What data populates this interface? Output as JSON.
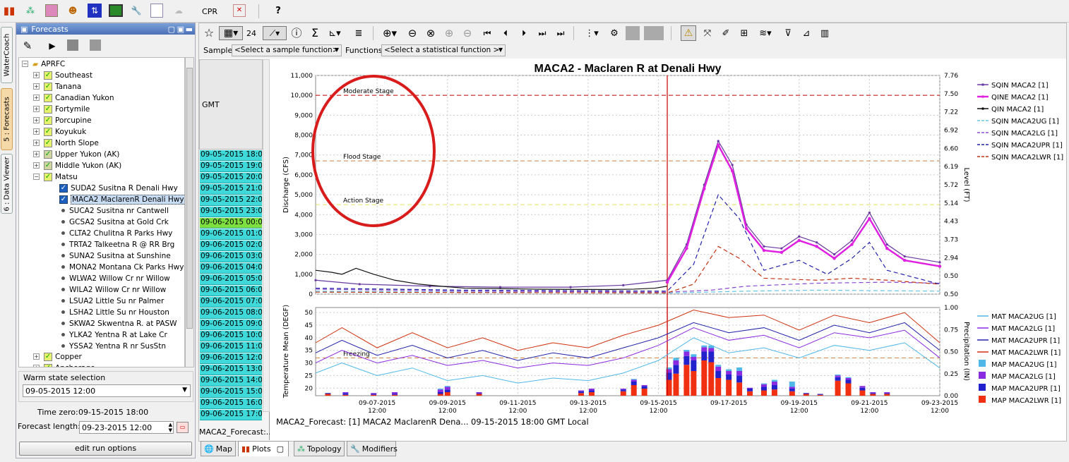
{
  "top_toolbar": {
    "cpr_label": "CPR",
    "help_label": "?"
  },
  "side_tabs": [
    "WaterCoach",
    "5 : Forecasts",
    "6 : Data Viewer"
  ],
  "forecasts_panel": {
    "title": "Forecasts",
    "tree": {
      "root": "APRFC",
      "groups": [
        "Southeast",
        "Tanana",
        "Canadian Yukon",
        "Fortymile",
        "Porcupine",
        "Koyukuk",
        "North Slope",
        "Upper Yukon (AK)",
        "Middle Yukon (AK)",
        "Matsu"
      ],
      "matsu_children": [
        "SUDA2 Susitna R Denali Hwy",
        "MACA2 MaclarenR Denali Hwy",
        "SUCA2 Susitna nr Cantwell",
        "GCSA2 Susitna at Gold Crk",
        "CLTA2 Chulitna R Parks Hwy",
        "TRTA2 Talkeetna R @ RR Brg",
        "SUNA2 Susitna at Sunshine",
        "MONA2 Montana Ck Parks Hwy",
        "WLWA2 Willow Cr nr Willow",
        "WILA2 Willow Cr nr Willow",
        "LSUA2 Little Su nr Palmer",
        "LSHA2 Little Su nr Houston",
        "SKWA2 Skwentna R. at PASW",
        "YLKA2 Yentna R at Lake Cr",
        "YSSA2 Yentna R nr SusStn"
      ],
      "after_groups": [
        "Copper",
        "Anchorage",
        "Kenai",
        "Southwest"
      ]
    },
    "warm_state_label": "Warm state selection",
    "warm_state_value": "09-05-2015 12:00",
    "time_zero_label": "Time zero:",
    "time_zero_value": "09-15-2015 18:00",
    "forecast_length_label": "Forecast length:",
    "forecast_length_value": "09-23-2015 12:00",
    "edit_run_label": "edit run options"
  },
  "table_panel": {
    "header": "GMT",
    "rows": [
      "09-05-2015 18:00",
      "09-05-2015 19:00",
      "09-05-2015 20:00",
      "09-05-2015 21:00",
      "09-05-2015 22:00",
      "09-05-2015 23:00",
      "09-06-2015 00:00",
      "09-06-2015 01:00",
      "09-06-2015 02:00",
      "09-06-2015 03:00",
      "09-06-2015 04:00",
      "09-06-2015 05:00",
      "09-06-2015 06:00",
      "09-06-2015 07:00",
      "09-06-2015 08:00",
      "09-06-2015 09:00",
      "09-06-2015 10:00",
      "09-06-2015 11:00",
      "09-06-2015 12:00",
      "09-06-2015 13:00",
      "09-06-2015 14:00",
      "09-06-2015 15:00",
      "09-06-2015 16:00",
      "09-06-2015 17:00"
    ],
    "footer": "MACA2_Forecast:..."
  },
  "plot_toolbar": {
    "number_label": "24",
    "sample_label": "Sample",
    "sample_select": "<Select a sample function>",
    "functions_label": "Functions",
    "functions_select": "<Select a statistical function >"
  },
  "bottom_tabs": [
    "Map",
    "Plots",
    "Topology",
    "Modifiers"
  ],
  "status_text": "MACA2_Forecast: [1] MACA2 MaclarenR Dena... 09-15-2015 18:00 GMT Local",
  "colors": {
    "cyan": "#3fd9d9",
    "magenta": "#e020e0",
    "red_annotation": "#d81b1b",
    "lwr": "#f03010",
    "upr": "#2222cc",
    "lg": "#8a2be2",
    "ug": "#4fb8e8"
  },
  "chart_data": [
    {
      "type": "line",
      "title": "MACA2 - Maclaren R at Denali Hwy",
      "ylabel": "Discharge (CFS)",
      "y2label": "Level (FT)",
      "ylim": [
        0,
        11000
      ],
      "yticks": [
        "11,000",
        "10,000",
        "9,000",
        "8,000",
        "7,000",
        "6,000",
        "5,000",
        "4,000",
        "3,000",
        "2,000",
        "1,000",
        "0"
      ],
      "y2ticks": [
        "7.76",
        "7.50",
        "7.22",
        "6.92",
        "6.60",
        "6.19",
        "5.72",
        "5.14",
        "4.43",
        "3.73",
        "2.94",
        "0.50",
        "0.50"
      ],
      "annotations": [
        "Moderate Stage",
        "Flood Stage",
        "Action Stage"
      ],
      "thresholds": {
        "Moderate Stage": 10000,
        "Flood Stage": 6700,
        "Action Stage": 4500
      },
      "x_start_day": 5.75,
      "x_end_day": 23.5,
      "forecast_start_day": 15.75,
      "xticks": [
        {
          "day": 7.5,
          "date": "09-07-2015",
          "time": "12:00"
        },
        {
          "day": 9.5,
          "date": "09-09-2015",
          "time": "12:00"
        },
        {
          "day": 11.5,
          "date": "09-11-2015",
          "time": "12:00"
        },
        {
          "day": 13.5,
          "date": "09-13-2015",
          "time": "12:00"
        },
        {
          "day": 15.5,
          "date": "09-15-2015",
          "time": "12:00"
        },
        {
          "day": 17.5,
          "date": "09-17-2015",
          "time": ""
        },
        {
          "day": 19.5,
          "date": "09-19-2015",
          "time": "12:00"
        },
        {
          "day": 21.5,
          "date": "09-21-2015",
          "time": "12:00"
        },
        {
          "day": 23.5,
          "date": "09-23-2015",
          "time": "12:00"
        }
      ],
      "series": [
        {
          "name": "SQIN MACA2 [1]",
          "color": "#6a3aa0",
          "dash": "",
          "x": [
            5.75,
            7,
            9,
            11,
            13,
            14.5,
            15.75,
            16.3,
            16.8,
            17.2,
            17.6,
            18,
            18.5,
            19,
            19.5,
            20,
            20.5,
            21,
            21.5,
            22,
            22.5,
            23.5
          ],
          "y": [
            700,
            500,
            400,
            350,
            350,
            450,
            700,
            2500,
            5500,
            7700,
            6500,
            3500,
            2400,
            2300,
            2900,
            2600,
            2000,
            2700,
            4100,
            2500,
            1900,
            1600
          ]
        },
        {
          "name": "QINE MACA2 [1]",
          "color": "#e020e0",
          "dash": "",
          "x": [
            15.75,
            16.3,
            16.8,
            17.2,
            17.6,
            18,
            18.5,
            19,
            19.5,
            20,
            20.5,
            21,
            21.5,
            22,
            22.5,
            23.5
          ],
          "y": [
            600,
            2300,
            5300,
            7500,
            6200,
            3300,
            2200,
            2100,
            2700,
            2400,
            1800,
            2500,
            3800,
            2300,
            1700,
            1400
          ]
        },
        {
          "name": "QIN MACA2 [1]",
          "color": "#111111",
          "dash": "",
          "x": [
            5.75,
            6.2,
            6.5,
            6.9,
            7.4,
            8,
            8.7,
            9.3,
            10,
            11,
            12,
            13,
            14,
            14.8,
            15.4,
            15.75
          ],
          "y": [
            1200,
            1100,
            1000,
            1300,
            1000,
            700,
            500,
            400,
            300,
            280,
            250,
            240,
            230,
            250,
            300,
            400
          ]
        },
        {
          "name": "SQIN MACA2UG [1]",
          "color": "#66c6e8",
          "dash": "6,4",
          "x": [
            5.75,
            10,
            15.75,
            18,
            20,
            23.5
          ],
          "y": [
            150,
            100,
            50,
            150,
            200,
            150
          ]
        },
        {
          "name": "SQIN MACA2LG [1]",
          "color": "#8a4ad0",
          "dash": "6,4",
          "x": [
            5.75,
            10,
            15.75,
            17,
            18,
            20,
            22,
            23.5
          ],
          "y": [
            250,
            150,
            100,
            200,
            400,
            550,
            600,
            550
          ]
        },
        {
          "name": "SQIN MACA2UPR [1]",
          "color": "#2222aa",
          "dash": "6,4",
          "x": [
            5.75,
            10,
            15.75,
            16.5,
            17.2,
            17.8,
            18.5,
            19.5,
            20.3,
            21,
            21.5,
            22,
            23.5
          ],
          "y": [
            300,
            200,
            150,
            1500,
            5000,
            3800,
            1200,
            1700,
            1000,
            1800,
            2600,
            1200,
            500
          ]
        },
        {
          "name": "SQIN MACA2LWR [1]",
          "color": "#c03010",
          "dash": "6,4",
          "x": [
            5.75,
            10,
            15.75,
            16.5,
            17.2,
            17.8,
            18.5,
            20,
            21,
            22,
            23.5
          ],
          "y": [
            100,
            80,
            60,
            500,
            2400,
            1800,
            800,
            700,
            800,
            700,
            500
          ]
        }
      ]
    },
    {
      "type": "line",
      "ylabel": "Temperature Mean (DEGF)",
      "y2label": "Precipitation (IN)",
      "ylim": [
        17,
        52
      ],
      "yticks": [
        "50",
        "45",
        "40",
        "35",
        "30",
        "25",
        "20"
      ],
      "y2ticks": [
        "1.00",
        "0.75",
        "0.50",
        "0.25",
        "0.00"
      ],
      "annotations": [
        "Freezing"
      ],
      "freezing": 32,
      "series": [
        {
          "name": "MAT MACA2UG [1]",
          "color": "#4fb8e8",
          "x": [
            5.75,
            6.5,
            7.5,
            8.5,
            9.5,
            10.5,
            11.5,
            12.5,
            13.5,
            14.5,
            15.5,
            16.5,
            17.5,
            18.5,
            19.5,
            20.5,
            21.5,
            22.5,
            23.5
          ],
          "y": [
            26,
            30,
            25,
            28,
            23,
            25,
            22,
            24,
            23,
            26,
            31,
            40,
            34,
            36,
            32,
            37,
            35,
            38,
            28
          ]
        },
        {
          "name": "MAT MACA2LG [1]",
          "color": "#8a2be2",
          "x": [
            5.75,
            6.5,
            7.5,
            8.5,
            9.5,
            10.5,
            11.5,
            12.5,
            13.5,
            14.5,
            15.5,
            16.5,
            17.5,
            18.5,
            19.5,
            20.5,
            21.5,
            22.5,
            23.5
          ],
          "y": [
            30,
            35,
            30,
            33,
            29,
            31,
            28,
            30,
            29,
            32,
            37,
            44,
            39,
            41,
            36,
            42,
            40,
            43,
            32
          ]
        },
        {
          "name": "MAT MACA2UPR [1]",
          "color": "#2222aa",
          "x": [
            5.75,
            6.5,
            7.5,
            8.5,
            9.5,
            10.5,
            11.5,
            12.5,
            13.5,
            14.5,
            15.5,
            16.5,
            17.5,
            18.5,
            19.5,
            20.5,
            21.5,
            22.5,
            23.5
          ],
          "y": [
            34,
            39,
            33,
            37,
            32,
            35,
            31,
            34,
            32,
            36,
            40,
            46,
            42,
            44,
            39,
            45,
            42,
            46,
            35
          ]
        },
        {
          "name": "MAT MACA2LWR [1]",
          "color": "#d03010",
          "x": [
            5.75,
            6.5,
            7.5,
            8.5,
            9.5,
            10.5,
            11.5,
            12.5,
            13.5,
            14.5,
            15.5,
            16.5,
            17.5,
            18.5,
            19.5,
            20.5,
            21.5,
            22.5,
            23.5
          ],
          "y": [
            38,
            44,
            36,
            42,
            36,
            40,
            35,
            38,
            36,
            41,
            45,
            51,
            48,
            49,
            43,
            49,
            46,
            50,
            38
          ]
        }
      ],
      "bars": [
        {
          "name": "MAP MACA2UG [1]",
          "color": "#4fb8e8"
        },
        {
          "name": "MAP MACA2LG [1]",
          "color": "#8a2be2"
        },
        {
          "name": "MAP MACA2UPR [1]",
          "color": "#2222cc"
        },
        {
          "name": "MAP MACA2LWR [1]",
          "color": "#f03010"
        }
      ],
      "bar_values": [
        {
          "day": 6.1,
          "lwr": 0.02,
          "upr": 0.01,
          "lg": 0,
          "ug": 0
        },
        {
          "day": 6.6,
          "lwr": 0.01,
          "upr": 0.02,
          "lg": 0.01,
          "ug": 0
        },
        {
          "day": 7.4,
          "lwr": 0.01,
          "upr": 0.01,
          "lg": 0.01,
          "ug": 0
        },
        {
          "day": 8.0,
          "lwr": 0.01,
          "upr": 0.01,
          "lg": 0.02,
          "ug": 0
        },
        {
          "day": 9.3,
          "lwr": 0.02,
          "upr": 0.02,
          "lg": 0.03,
          "ug": 0.01
        },
        {
          "day": 9.5,
          "lwr": 0.04,
          "upr": 0.03,
          "lg": 0.03,
          "ug": 0.01
        },
        {
          "day": 10.4,
          "lwr": 0.02,
          "upr": 0.01,
          "lg": 0.01,
          "ug": 0
        },
        {
          "day": 13.3,
          "lwr": 0.03,
          "upr": 0.02,
          "lg": 0.01,
          "ug": 0
        },
        {
          "day": 13.6,
          "lwr": 0.04,
          "upr": 0.02,
          "lg": 0.02,
          "ug": 0
        },
        {
          "day": 14.5,
          "lwr": 0.05,
          "upr": 0.02,
          "lg": 0.01,
          "ug": 0
        },
        {
          "day": 14.8,
          "lwr": 0.12,
          "upr": 0.04,
          "lg": 0.02,
          "ug": 0.01
        },
        {
          "day": 15.1,
          "lwr": 0.08,
          "upr": 0.03,
          "lg": 0.01,
          "ug": 0
        },
        {
          "day": 15.8,
          "lwr": 0.18,
          "upr": 0.08,
          "lg": 0.04,
          "ug": 0.02
        },
        {
          "day": 16.0,
          "lwr": 0.25,
          "upr": 0.1,
          "lg": 0.05,
          "ug": 0.03
        },
        {
          "day": 16.3,
          "lwr": 0.35,
          "upr": 0.1,
          "lg": 0.05,
          "ug": 0.02
        },
        {
          "day": 16.5,
          "lwr": 0.28,
          "upr": 0.12,
          "lg": 0.04,
          "ug": 0.03
        },
        {
          "day": 16.8,
          "lwr": 0.4,
          "upr": 0.1,
          "lg": 0.05,
          "ug": 0.02
        },
        {
          "day": 17.0,
          "lwr": 0.38,
          "upr": 0.12,
          "lg": 0.04,
          "ug": 0.03
        },
        {
          "day": 17.2,
          "lwr": 0.2,
          "upr": 0.08,
          "lg": 0.05,
          "ug": 0.02
        },
        {
          "day": 17.5,
          "lwr": 0.18,
          "upr": 0.06,
          "lg": 0.04,
          "ug": 0.02
        },
        {
          "day": 17.8,
          "lwr": 0.15,
          "upr": 0.08,
          "lg": 0.05,
          "ug": 0.04
        },
        {
          "day": 18.1,
          "lwr": 0.05,
          "upr": 0.03,
          "lg": 0.01,
          "ug": 0
        },
        {
          "day": 18.5,
          "lwr": 0.06,
          "upr": 0.04,
          "lg": 0.03,
          "ug": 0.01
        },
        {
          "day": 18.8,
          "lwr": 0.07,
          "upr": 0.05,
          "lg": 0.04,
          "ug": 0.02
        },
        {
          "day": 19.3,
          "lwr": 0.05,
          "upr": 0.03,
          "lg": 0.02,
          "ug": 0.06
        },
        {
          "day": 19.7,
          "lwr": 0.02,
          "upr": 0.01,
          "lg": 0,
          "ug": 0
        },
        {
          "day": 20.1,
          "lwr": 0.01,
          "upr": 0.01,
          "lg": 0,
          "ug": 0
        },
        {
          "day": 20.6,
          "lwr": 0.17,
          "upr": 0.04,
          "lg": 0.02,
          "ug": 0.01
        },
        {
          "day": 20.9,
          "lwr": 0.14,
          "upr": 0.04,
          "lg": 0.02,
          "ug": 0.01
        },
        {
          "day": 21.3,
          "lwr": 0.06,
          "upr": 0.03,
          "lg": 0.02,
          "ug": 0
        },
        {
          "day": 21.6,
          "lwr": 0.02,
          "upr": 0.01,
          "lg": 0.01,
          "ug": 0
        },
        {
          "day": 22.0,
          "lwr": 0.02,
          "upr": 0.01,
          "lg": 0.01,
          "ug": 0
        }
      ]
    }
  ]
}
